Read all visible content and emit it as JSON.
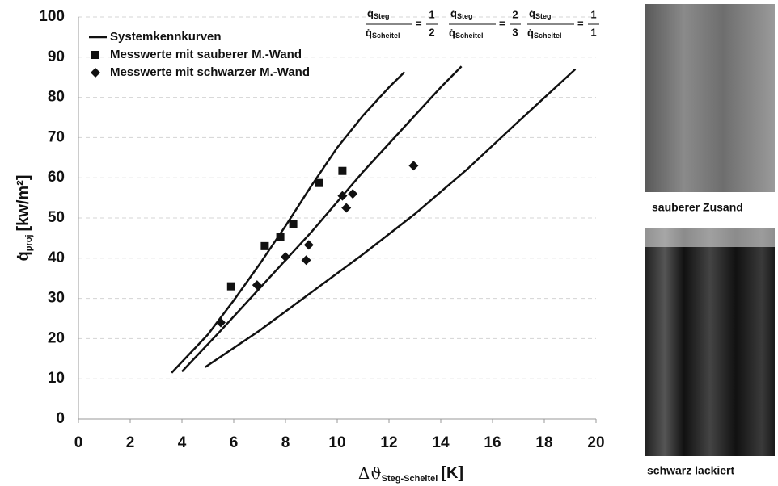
{
  "chart_data": {
    "type": "scatter",
    "xlabel": {
      "symbol": "Δϑ",
      "sub": "Steg-Scheitel",
      "unit": "[K]"
    },
    "ylabel": {
      "symbol": "q̇",
      "sub": "proj",
      "unit": "[kw/m²]"
    },
    "xlim": [
      0,
      20
    ],
    "xticks": [
      0,
      2,
      4,
      6,
      8,
      10,
      12,
      14,
      16,
      18,
      20
    ],
    "ylim": [
      0,
      100
    ],
    "yticks": [
      0,
      10,
      20,
      30,
      40,
      50,
      60,
      70,
      80,
      90,
      100
    ],
    "grid": true,
    "legend": "upper left",
    "line_legend": "Systemkennkurven",
    "line_color": "#111",
    "curves": [
      {
        "x": [
          3.6,
          5,
          6,
          7,
          8,
          9,
          10,
          11,
          12,
          12.6
        ],
        "values": [
          11.5,
          21,
          29.5,
          38.5,
          48,
          58,
          67.5,
          75.5,
          82.5,
          86.3
        ],
        "label": {
          "num": "q̇",
          "num_sub": "Steg",
          "den": "q̇",
          "den_sub": "Scheitel",
          "eq": "=",
          "r_num": "1",
          "r_den": "2"
        }
      },
      {
        "x": [
          4,
          5.5,
          7,
          8,
          9,
          10,
          11,
          12,
          13,
          14,
          14.8
        ],
        "values": [
          11.8,
          22,
          32.5,
          39.5,
          46.5,
          54,
          61.5,
          68.5,
          75.5,
          82.5,
          87.7
        ],
        "label": {
          "num": "q̇",
          "num_sub": "Steg",
          "den": "q̇",
          "den_sub": "Scheitel",
          "eq": "=",
          "r_num": "2",
          "r_den": "3"
        }
      },
      {
        "x": [
          4.9,
          7,
          9,
          11,
          13,
          15,
          17,
          19.2
        ],
        "values": [
          12.9,
          22,
          31.5,
          41,
          51,
          62,
          74,
          87
        ],
        "label": {
          "num": "q̇",
          "num_sub": "Steg",
          "den": "q̇",
          "den_sub": "Scheitel",
          "eq": "=",
          "r_num": "1",
          "r_den": "1"
        }
      }
    ],
    "series": [
      {
        "name": "Messwerte mit sauberer M.-Wand",
        "marker": "square",
        "color": "#111",
        "x": [
          5.9,
          7.2,
          7.8,
          8.3,
          9.3,
          10.2
        ],
        "values": [
          33,
          43,
          45.3,
          48.5,
          58.7,
          61.7
        ]
      },
      {
        "name": "Messwerte mit schwarzer M.-Wand",
        "marker": "diamond",
        "color": "#111",
        "x": [
          5.5,
          6.9,
          8.0,
          8.8,
          8.9,
          10.2,
          10.35,
          10.6,
          12.95
        ],
        "values": [
          24,
          33.3,
          40.3,
          39.5,
          43.3,
          55.5,
          52.5,
          56,
          63
        ]
      }
    ]
  },
  "photos": [
    {
      "caption": "sauberer Zusand"
    },
    {
      "caption": "schwarz lackiert"
    }
  ]
}
